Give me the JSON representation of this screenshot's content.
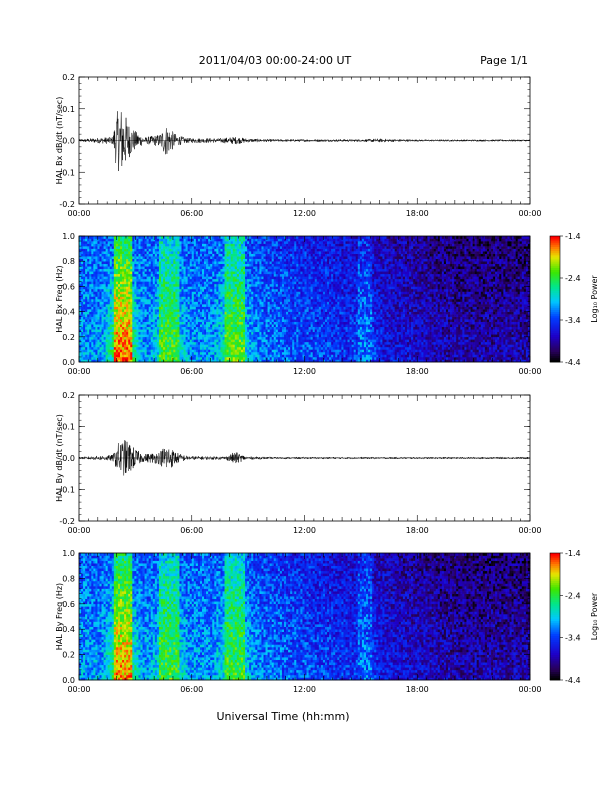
{
  "header": {
    "title": "2011/04/03  00:00-24:00 UT",
    "page": "Page 1/1"
  },
  "footer": {
    "xlabel": "Universal Time (hh:mm)"
  },
  "colorbar": {
    "label": "Log₁₀ Power",
    "ticks": [
      "-1.4",
      "-2.4",
      "-3.4",
      "-4.4"
    ],
    "tick_values": [
      -1.4,
      -2.4,
      -3.4,
      -4.4
    ],
    "range": [
      -4.4,
      -1.4
    ]
  },
  "chart_data": [
    {
      "type": "line",
      "ylabel": "HAL Bx dB/dt (nT/sec)",
      "xlim": [
        0,
        24
      ],
      "ylim": [
        -0.2,
        0.2
      ],
      "xticks": [
        "00:00",
        "06:00",
        "12:00",
        "18:00",
        "00:00"
      ],
      "yticks": [
        "-0.2",
        "-0.1",
        "0.0",
        "0.1",
        "0.2"
      ],
      "xtick_values": [
        0,
        6,
        12,
        18,
        24
      ],
      "ytick_values": [
        -0.2,
        -0.1,
        0.0,
        0.1,
        0.2
      ],
      "series": [
        {
          "amplitude_envelope": {
            "x": [
              0,
              1.8,
              2.0,
              2.3,
              2.6,
              3.0,
              3.5,
              4.3,
              4.6,
              5.2,
              5.7,
              7.5,
              8.3,
              9.0,
              10.5,
              14.0,
              15.2,
              15.8,
              18.0,
              24
            ],
            "y": [
              0.004,
              0.012,
              0.09,
              0.11,
              0.06,
              0.03,
              0.01,
              0.02,
              0.05,
              0.018,
              0.008,
              0.007,
              0.012,
              0.006,
              0.004,
              0.004,
              0.004,
              0.006,
              0.003,
              0.003
            ]
          }
        }
      ]
    },
    {
      "type": "heatmap",
      "ylabel": "HAL Bx Freq (Hz)",
      "xlim": [
        0,
        24
      ],
      "ylim": [
        0,
        1.0
      ],
      "xticks": [
        "00:00",
        "06:00",
        "12:00",
        "18:00",
        "00:00"
      ],
      "yticks": [
        "0.0",
        "0.2",
        "0.4",
        "0.6",
        "0.8",
        "1.0"
      ],
      "xtick_values": [
        0,
        6,
        12,
        18,
        24
      ],
      "ytick_values": [
        0,
        0.2,
        0.4,
        0.6,
        0.8,
        1.0
      ],
      "zlabel": "Log₁₀ Power",
      "zlim": [
        -4.4,
        -1.4
      ],
      "bands": [
        {
          "x": [
            1.8,
            2.8
          ],
          "peak": -1.6
        },
        {
          "x": [
            4.3,
            5.3
          ],
          "peak": -2.3
        },
        {
          "x": [
            7.7,
            8.8
          ],
          "peak": -2.2
        },
        {
          "x": [
            14.8,
            15.6
          ],
          "peak": -3.2
        }
      ],
      "background": {
        "early": -3.3,
        "late": -4.1
      }
    },
    {
      "type": "line",
      "ylabel": "HAL By dB/dt (nT/sec)",
      "xlim": [
        0,
        24
      ],
      "ylim": [
        -0.2,
        0.2
      ],
      "xticks": [
        "00:00",
        "06:00",
        "12:00",
        "18:00",
        "00:00"
      ],
      "yticks": [
        "-0.2",
        "-0.1",
        "0.0",
        "0.1",
        "0.2"
      ],
      "xtick_values": [
        0,
        6,
        12,
        18,
        24
      ],
      "ytick_values": [
        -0.2,
        -0.1,
        0.0,
        0.1,
        0.2
      ],
      "series": [
        {
          "amplitude_envelope": {
            "x": [
              0,
              1.8,
              2.1,
              2.5,
              2.9,
              3.4,
              4.3,
              4.6,
              5.3,
              5.8,
              7.8,
              8.3,
              8.9,
              10.5,
              24
            ],
            "y": [
              0.003,
              0.01,
              0.05,
              0.06,
              0.035,
              0.012,
              0.02,
              0.045,
              0.015,
              0.006,
              0.005,
              0.02,
              0.005,
              0.003,
              0.003
            ]
          }
        }
      ]
    },
    {
      "type": "heatmap",
      "ylabel": "HAL By Freq (Hz)",
      "xlim": [
        0,
        24
      ],
      "ylim": [
        0,
        1.0
      ],
      "xticks": [
        "00:00",
        "06:00",
        "12:00",
        "18:00",
        "00:00"
      ],
      "yticks": [
        "0.0",
        "0.2",
        "0.4",
        "0.6",
        "0.8",
        "1.0"
      ],
      "xtick_values": [
        0,
        6,
        12,
        18,
        24
      ],
      "ytick_values": [
        0,
        0.2,
        0.4,
        0.6,
        0.8,
        1.0
      ],
      "zlabel": "Log₁₀ Power",
      "zlim": [
        -4.4,
        -1.4
      ],
      "bands": [
        {
          "x": [
            1.8,
            2.8
          ],
          "peak": -1.7
        },
        {
          "x": [
            4.3,
            5.3
          ],
          "peak": -2.3
        },
        {
          "x": [
            7.7,
            8.8
          ],
          "peak": -2.3
        },
        {
          "x": [
            14.8,
            15.6
          ],
          "peak": -3.2
        }
      ],
      "background": {
        "early": -3.3,
        "late": -4.1
      }
    }
  ]
}
